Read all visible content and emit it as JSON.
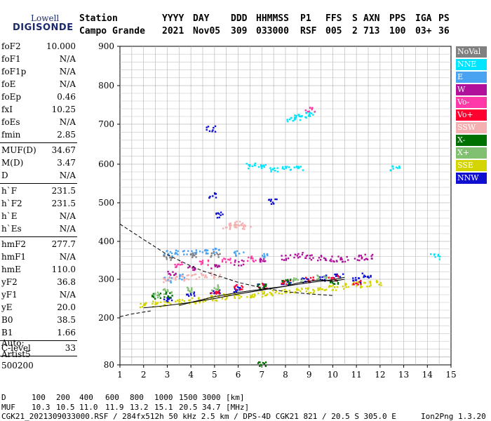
{
  "logo": {
    "small": "Lowell",
    "big": "DIGISONDE"
  },
  "header": {
    "row1": [
      "Station",
      "YYYY",
      "DAY",
      "DDD",
      "HHMMSS",
      "P1",
      "FFS",
      "S",
      "AXN",
      "PPS",
      "IGA",
      "PS"
    ],
    "row2": [
      "Campo Grande",
      "2021",
      "Nov05",
      "309",
      "033000",
      "RSF",
      "005",
      "2",
      "713",
      "100",
      "03+",
      "36"
    ]
  },
  "params": [
    {
      "name": "foF2",
      "value": "10.000"
    },
    {
      "name": "foF1",
      "value": "N/A"
    },
    {
      "name": "foF1p",
      "value": "N/A"
    },
    {
      "name": "foE",
      "value": "N/A"
    },
    {
      "name": "foEp",
      "value": "0.46"
    },
    {
      "name": "fxI",
      "value": "10.25"
    },
    {
      "name": "foEs",
      "value": "N/A"
    },
    {
      "name": "fmin",
      "value": "2.85"
    },
    {
      "name": "MUF(D)",
      "value": "34.67"
    },
    {
      "name": "M(D)",
      "value": "3.47"
    },
    {
      "name": "D",
      "value": "N/A"
    },
    {
      "name": "h`F",
      "value": "231.5"
    },
    {
      "name": "h`F2",
      "value": "231.5"
    },
    {
      "name": "h`E",
      "value": "N/A"
    },
    {
      "name": "h`Es",
      "value": "N/A"
    },
    {
      "name": "hmF2",
      "value": "277.7"
    },
    {
      "name": "hmF1",
      "value": "N/A"
    },
    {
      "name": "hmE",
      "value": "110.0"
    },
    {
      "name": "yF2",
      "value": "36.8"
    },
    {
      "name": "yF1",
      "value": "N/A"
    },
    {
      "name": "yE",
      "value": "20.0"
    },
    {
      "name": "B0",
      "value": "38.5"
    },
    {
      "name": "B1",
      "value": "1.66"
    },
    {
      "name": "C-level",
      "value": "33"
    }
  ],
  "scaling": {
    "auto_label": "Auto:",
    "artist": "Artist5",
    "code": "500200"
  },
  "legend": [
    {
      "label": "NoVal",
      "color": "#808080"
    },
    {
      "label": "NNE",
      "color": "#00e5ff"
    },
    {
      "label": "E",
      "color": "#4aa3f0"
    },
    {
      "label": "W",
      "color": "#b0109a"
    },
    {
      "label": "Vo-",
      "color": "#ff3aa8"
    },
    {
      "label": "Vo+",
      "color": "#ff0030"
    },
    {
      "label": "SSW",
      "color": "#f4b0b0"
    },
    {
      "label": "X-",
      "color": "#007000"
    },
    {
      "label": "X+",
      "color": "#80c070"
    },
    {
      "label": "SSE",
      "color": "#d4d400"
    },
    {
      "label": "NNW",
      "color": "#1010d0"
    }
  ],
  "footer": {
    "d_label": "D",
    "d_values": [
      "100",
      "200",
      "400",
      "600",
      "800",
      "1000",
      "1500",
      "3000",
      "[km]"
    ],
    "muf_label": "MUF",
    "muf_values": [
      "10.3",
      "10.5",
      "11.0",
      "11.9",
      "13.2",
      "15.1",
      "20.5",
      "34.7",
      "[MHz]"
    ],
    "info": "CGK21_2021309033000.RSF / 284fx512h 50 kHz 2.5 km / DPS-4D CGK21 821 / 20.5 S 305.0 E",
    "version": "Ion2Png 1.3.20"
  },
  "chart_data": {
    "type": "scatter",
    "title": "",
    "xlabel": "",
    "ylabel": "",
    "xlim": [
      1,
      15
    ],
    "ylim": [
      80,
      900
    ],
    "x_ticks": [
      1,
      2,
      3,
      4,
      5,
      6,
      7,
      8,
      9,
      10,
      11,
      12,
      13,
      14,
      15
    ],
    "y_ticks": [
      80,
      200,
      300,
      400,
      500,
      600,
      700,
      800,
      900
    ],
    "y_scale": "piecewise-log-like",
    "grid": true,
    "legend_position": "right",
    "series": [
      {
        "name": "SSE",
        "color": "#d4d400",
        "points": [
          [
            2.0,
            235
          ],
          [
            2.5,
            238
          ],
          [
            3.0,
            240
          ],
          [
            3.5,
            243
          ],
          [
            4.0,
            246
          ],
          [
            4.5,
            249
          ],
          [
            5.0,
            252
          ],
          [
            5.5,
            256
          ],
          [
            6.0,
            259
          ],
          [
            6.5,
            262
          ],
          [
            7.0,
            264
          ],
          [
            7.5,
            266
          ],
          [
            8.0,
            268
          ],
          [
            8.5,
            271
          ],
          [
            9.0,
            274
          ],
          [
            9.5,
            277
          ],
          [
            10.0,
            280
          ],
          [
            10.5,
            284
          ],
          [
            11.0,
            288
          ],
          [
            11.5,
            290
          ],
          [
            12.0,
            293
          ]
        ]
      },
      {
        "name": "NNW",
        "color": "#1010d0",
        "points": [
          [
            3.0,
            250
          ],
          [
            4.0,
            262
          ],
          [
            5.0,
            270
          ],
          [
            6.0,
            276
          ],
          [
            7.0,
            282
          ],
          [
            8.0,
            290
          ],
          [
            8.8,
            300
          ],
          [
            9.5,
            305
          ],
          [
            10.2,
            310
          ],
          [
            11.0,
            300
          ],
          [
            11.4,
            312
          ],
          [
            4.8,
            690
          ],
          [
            4.9,
            520
          ],
          [
            5.2,
            470
          ],
          [
            7.4,
            505
          ]
        ]
      },
      {
        "name": "W",
        "color": "#b0109a",
        "points": [
          [
            3.2,
            320
          ],
          [
            4.0,
            330
          ],
          [
            5.0,
            335
          ],
          [
            6.0,
            345
          ],
          [
            7.0,
            350
          ],
          [
            8.0,
            360
          ],
          [
            8.5,
            365
          ],
          [
            9.0,
            360
          ],
          [
            9.5,
            358
          ],
          [
            10.0,
            355
          ],
          [
            10.5,
            355
          ],
          [
            11.0,
            358
          ],
          [
            11.5,
            360
          ]
        ]
      },
      {
        "name": "E",
        "color": "#4aa3f0",
        "points": [
          [
            3.0,
            370
          ],
          [
            3.5,
            372
          ],
          [
            4.0,
            373
          ],
          [
            4.5,
            374
          ],
          [
            5.0,
            376
          ],
          [
            6.0,
            370
          ],
          [
            7.0,
            365
          ],
          [
            3.0,
            300
          ],
          [
            3.5,
            308
          ]
        ]
      },
      {
        "name": "SSW",
        "color": "#f4b0b0",
        "points": [
          [
            5.5,
            440
          ],
          [
            5.8,
            445
          ],
          [
            6.0,
            448
          ],
          [
            6.3,
            440
          ],
          [
            3.0,
            300
          ],
          [
            3.5,
            305
          ],
          [
            4.0,
            308
          ],
          [
            4.5,
            310
          ],
          [
            5.0,
            312
          ]
        ]
      },
      {
        "name": "NNE",
        "color": "#00e5ff",
        "points": [
          [
            6.5,
            597
          ],
          [
            7.0,
            595
          ],
          [
            7.5,
            590
          ],
          [
            8.0,
            590
          ],
          [
            8.5,
            593
          ],
          [
            8.2,
            715
          ],
          [
            8.5,
            720
          ],
          [
            8.8,
            725
          ],
          [
            9.0,
            727
          ],
          [
            12.6,
            590
          ],
          [
            14.3,
            362
          ]
        ]
      },
      {
        "name": "Vo+",
        "color": "#ff0030",
        "points": [
          [
            5.0,
            270
          ],
          [
            6.0,
            280
          ],
          [
            7.0,
            285
          ],
          [
            8.0,
            292
          ],
          [
            9.0,
            300
          ],
          [
            10.0,
            305
          ],
          [
            11.0,
            295
          ]
        ]
      },
      {
        "name": "X-",
        "color": "#007000",
        "points": [
          [
            2.5,
            258
          ],
          [
            3.0,
            262
          ],
          [
            7.0,
            283
          ],
          [
            8.0,
            295
          ],
          [
            10.0,
            296
          ],
          [
            7.0,
            82
          ]
        ]
      },
      {
        "name": "X+",
        "color": "#80c070",
        "points": [
          [
            2.5,
            262
          ],
          [
            3.0,
            270
          ],
          [
            4.0,
            275
          ],
          [
            5.0,
            280
          ],
          [
            8.5,
            300
          ],
          [
            9.5,
            305
          ]
        ]
      },
      {
        "name": "Vo-",
        "color": "#ff3aa8",
        "points": [
          [
            3.5,
            340
          ],
          [
            4.5,
            345
          ],
          [
            5.5,
            350
          ],
          [
            6.5,
            355
          ],
          [
            9.0,
            740
          ]
        ]
      },
      {
        "name": "NoVal",
        "color": "#808080",
        "points": [
          [
            3.0,
            360
          ],
          [
            4.0,
            365
          ],
          [
            5.0,
            368
          ]
        ]
      }
    ],
    "traces": {
      "f2_trace": [
        [
          3.5,
          232
        ],
        [
          4.0,
          240
        ],
        [
          5.0,
          250
        ],
        [
          6.0,
          262
        ],
        [
          7.0,
          272
        ],
        [
          8.0,
          282
        ],
        [
          8.5,
          290
        ],
        [
          9.0,
          295
        ],
        [
          9.5,
          298
        ],
        [
          10.0,
          295
        ],
        [
          10.5,
          300
        ]
      ],
      "f2_ordinary": [
        [
          2.0,
          226
        ],
        [
          2.5,
          229
        ],
        [
          3.0,
          232
        ],
        [
          4.0,
          240
        ],
        [
          5.0,
          255
        ],
        [
          6.0,
          266
        ],
        [
          7.0,
          274
        ],
        [
          8.0,
          282
        ],
        [
          9.0,
          291
        ],
        [
          10.0,
          299
        ],
        [
          10.5,
          305
        ]
      ],
      "profile_dashed": [
        [
          1.0,
          445
        ],
        [
          1.5,
          425
        ],
        [
          2.0,
          405
        ],
        [
          2.5,
          385
        ],
        [
          3.0,
          365
        ],
        [
          3.5,
          350
        ],
        [
          4.0,
          335
        ],
        [
          4.5,
          322
        ],
        [
          5.0,
          312
        ],
        [
          5.5,
          302
        ],
        [
          6.0,
          292
        ],
        [
          6.5,
          285
        ],
        [
          7.0,
          278
        ],
        [
          7.5,
          273
        ],
        [
          8.0,
          268
        ],
        [
          8.5,
          265
        ],
        [
          9.0,
          262
        ],
        [
          9.5,
          260
        ],
        [
          10.0,
          258
        ]
      ],
      "profile_dashed_low": [
        [
          1.0,
          203
        ],
        [
          1.5,
          210
        ],
        [
          2.0,
          215
        ],
        [
          2.3,
          218
        ]
      ]
    }
  }
}
